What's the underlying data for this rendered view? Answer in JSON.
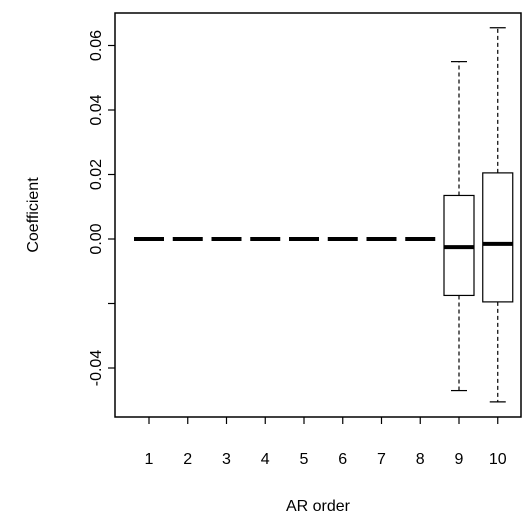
{
  "chart_data": {
    "type": "box",
    "xlabel": "AR order",
    "ylabel": "Coefficient",
    "categories": [
      "1",
      "2",
      "3",
      "4",
      "5",
      "6",
      "7",
      "8",
      "9",
      "10"
    ],
    "ylim": [
      -0.055,
      0.07
    ],
    "yticks": [
      {
        "value": 0.06,
        "label": "0.06"
      },
      {
        "value": 0.04,
        "label": "0.04"
      },
      {
        "value": 0.02,
        "label": "0.02"
      },
      {
        "value": 0.0,
        "label": "0.00"
      },
      {
        "value": -0.02,
        "label": ""
      },
      {
        "value": -0.04,
        "label": "-0.04"
      }
    ],
    "boxes": [
      {
        "category": "1",
        "min": 0.0,
        "q1": 0.0,
        "median": 0.0,
        "q3": 0.0,
        "max": 0.0
      },
      {
        "category": "2",
        "min": 0.0,
        "q1": 0.0,
        "median": 0.0,
        "q3": 0.0,
        "max": 0.0
      },
      {
        "category": "3",
        "min": 0.0,
        "q1": 0.0,
        "median": 0.0,
        "q3": 0.0,
        "max": 0.0
      },
      {
        "category": "4",
        "min": 0.0,
        "q1": 0.0,
        "median": 0.0,
        "q3": 0.0,
        "max": 0.0
      },
      {
        "category": "5",
        "min": 0.0,
        "q1": 0.0,
        "median": 0.0,
        "q3": 0.0,
        "max": 0.0
      },
      {
        "category": "6",
        "min": 0.0,
        "q1": 0.0,
        "median": 0.0,
        "q3": 0.0,
        "max": 0.0
      },
      {
        "category": "7",
        "min": 0.0,
        "q1": 0.0,
        "median": 0.0,
        "q3": 0.0,
        "max": 0.0
      },
      {
        "category": "8",
        "min": 0.0,
        "q1": 0.0,
        "median": 0.0,
        "q3": 0.0,
        "max": 0.0
      },
      {
        "category": "9",
        "min": -0.047,
        "q1": -0.0175,
        "median": -0.0025,
        "q3": 0.0135,
        "max": 0.055
      },
      {
        "category": "10",
        "min": -0.0505,
        "q1": -0.0195,
        "median": -0.0015,
        "q3": 0.0205,
        "max": 0.0655
      }
    ],
    "grid": false,
    "legend": "none",
    "colors": {
      "line": "#000000",
      "box_fill": "#ffffff",
      "background": "#ffffff"
    }
  }
}
